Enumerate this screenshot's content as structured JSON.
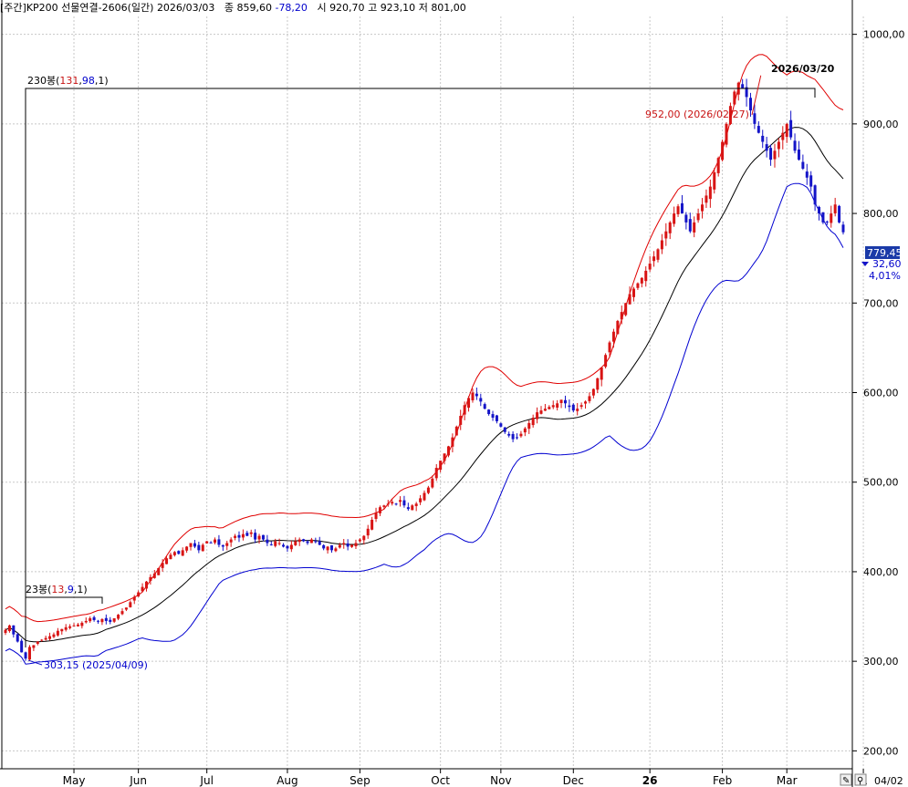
{
  "header": {
    "prefix": "[주간]",
    "name": "KP200 선물연결-2606(일간)",
    "date": "2026/03/03",
    "close_label": "종",
    "close": "859,60",
    "change": "-78,20",
    "open_label": "시",
    "open": "920,70",
    "high_label": "고",
    "high": "923,10",
    "low_label": "저",
    "low": "801,00"
  },
  "annotations": {
    "top_date": "2026/03/20",
    "bar230_prefix": "230봉(",
    "bar230_a": "131",
    "bar230_b": "98",
    "bar230_c": "1",
    "bar230_suffix": ")",
    "bar23_prefix": "23봉(",
    "bar23_a": "13",
    "bar23_b": "9",
    "bar23_c": "1",
    "bar23_suffix": ")",
    "high_marker": "952,00 (2026/02/27)",
    "low_marker": "303,15 (2025/04/09)",
    "last_price": "779,45",
    "last_change": "32,60",
    "last_pct": "4,01%",
    "corner_date": "04/02"
  },
  "colors": {
    "up": "#d81414",
    "down": "#1414c8",
    "upper_band": "#e00000",
    "lower_band": "#0000d0",
    "mid_band": "#000000",
    "grid": "#c8c8c8",
    "price_tag": "#1a3aa8"
  },
  "chart_data": {
    "type": "candlestick",
    "title": "KP200 선물연결-2606(일간)",
    "ylim": [
      180,
      1020
    ],
    "y_ticks": [
      {
        "v": 200,
        "label": "200,00"
      },
      {
        "v": 300,
        "label": "300,00"
      },
      {
        "v": 400,
        "label": "400,00"
      },
      {
        "v": 500,
        "label": "500,00"
      },
      {
        "v": 600,
        "label": "600,00"
      },
      {
        "v": 700,
        "label": "700,00"
      },
      {
        "v": 800,
        "label": "800,00"
      },
      {
        "v": 900,
        "label": "900,00"
      },
      {
        "v": 1000,
        "label": "1000,00"
      }
    ],
    "x_ticks": [
      "May",
      "Jun",
      "Jul",
      "Aug",
      "Sep",
      "Oct",
      "Nov",
      "Dec",
      "26",
      "Feb",
      "Mar",
      "A"
    ],
    "tick_bar_index": [
      17,
      33,
      50,
      70,
      88,
      108,
      123,
      141,
      160,
      178,
      194,
      213
    ],
    "series_closes": [
      335,
      340,
      330,
      322,
      310,
      303,
      316,
      318,
      322,
      324,
      326,
      328,
      330,
      334,
      336,
      338,
      339,
      340,
      341,
      343,
      345,
      348,
      346,
      345,
      347,
      345,
      344,
      348,
      352,
      356,
      360,
      366,
      372,
      377,
      383,
      389,
      394,
      398,
      404,
      410,
      415,
      419,
      422,
      420,
      424,
      428,
      432,
      428,
      424,
      430,
      434,
      432,
      436,
      430,
      428,
      432,
      436,
      440,
      438,
      442,
      440,
      444,
      436,
      440,
      436,
      432,
      430,
      434,
      432,
      428,
      426,
      430,
      434,
      436,
      434,
      432,
      436,
      434,
      430,
      426,
      428,
      424,
      426,
      430,
      432,
      428,
      430,
      432,
      436,
      440,
      448,
      458,
      466,
      472,
      474,
      476,
      478,
      476,
      480,
      474,
      470,
      474,
      476,
      482,
      488,
      494,
      504,
      516,
      524,
      532,
      540,
      550,
      562,
      574,
      586,
      594,
      600,
      596,
      590,
      582,
      576,
      572,
      568,
      562,
      556,
      552,
      548,
      550,
      554,
      560,
      566,
      572,
      578,
      580,
      582,
      584,
      586,
      588,
      592,
      588,
      584,
      580,
      582,
      586,
      590,
      596,
      604,
      616,
      628,
      642,
      656,
      668,
      680,
      690,
      700,
      710,
      716,
      722,
      728,
      736,
      744,
      752,
      760,
      770,
      780,
      790,
      800,
      808,
      800,
      790,
      780,
      790,
      800,
      810,
      820,
      830,
      846,
      862,
      880,
      900,
      920,
      936,
      946,
      940,
      930,
      915,
      900,
      890,
      880,
      870,
      860,
      870,
      880,
      890,
      900,
      885,
      870,
      860,
      850,
      840,
      830,
      810,
      800,
      790,
      790,
      800,
      810,
      790,
      779
    ],
    "series_volatility_note": "values read approximately from chart",
    "bollinger_period": 20,
    "high": {
      "value": 952.0,
      "date": "2026/02/27"
    },
    "low": {
      "value": 303.15,
      "date": "2025/04/09"
    }
  }
}
